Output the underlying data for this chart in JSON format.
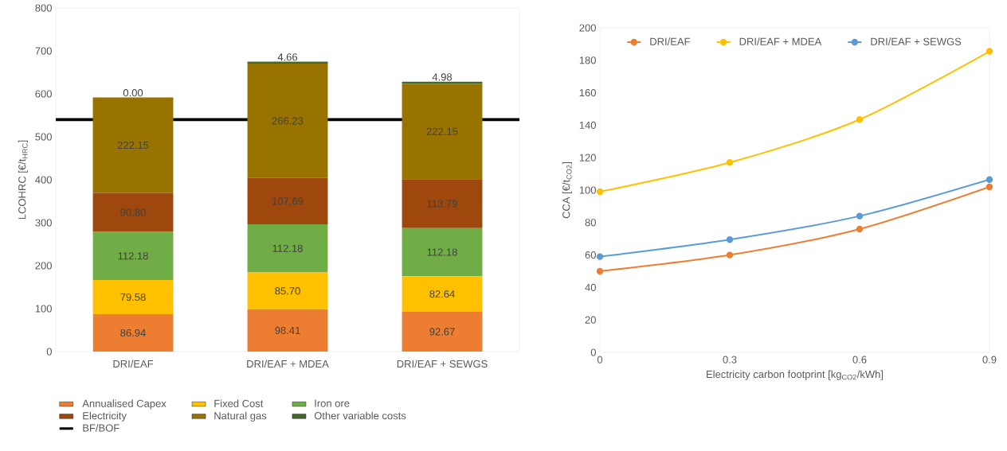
{
  "chart_data": [
    {
      "type": "bar",
      "stacked": true,
      "ylabel": "LCOHRC [€/t$_{HRC}$]",
      "categories": [
        "DRI/EAF",
        "DRI/EAF + MDEA",
        "DRI/EAF + SEWGS"
      ],
      "ylim": [
        0,
        800
      ],
      "yticks": [
        0,
        100,
        200,
        300,
        400,
        500,
        600,
        700,
        800
      ],
      "legend": "bottom",
      "series": [
        {
          "name": "Annualised Capex",
          "color": "#ed7d31",
          "values": [
            86.94,
            98.41,
            92.67
          ],
          "value_labels": [
            "86.94",
            "98.41",
            "92.67"
          ]
        },
        {
          "name": "Fixed Cost",
          "color": "#ffc000",
          "values": [
            79.58,
            85.7,
            82.64
          ],
          "value_labels": [
            "79.58",
            "85.70",
            "82.64"
          ]
        },
        {
          "name": "Iron ore",
          "color": "#70ad47",
          "values": [
            112.18,
            112.18,
            112.18
          ],
          "value_labels": [
            "112.18",
            "112.18",
            "112.18"
          ]
        },
        {
          "name": "Electricity",
          "color": "#9e480e",
          "values": [
            90.8,
            107.69,
            113.79
          ],
          "value_labels": [
            "90.80",
            "107.69",
            "113.79"
          ]
        },
        {
          "name": "Natural gas",
          "color": "#997300",
          "values": [
            222.15,
            266.23,
            222.15
          ],
          "value_labels": [
            "222.15",
            "266.23",
            "222.15"
          ]
        },
        {
          "name": "Other variable costs",
          "color": "#43682b",
          "values": [
            0.0,
            4.66,
            4.98
          ],
          "value_labels": [
            "0.00",
            "4.66",
            "4.98"
          ]
        }
      ],
      "ref_lines": [
        {
          "axis": "y",
          "value": 540,
          "label": "BF/BOF",
          "color": "#000000"
        }
      ]
    },
    {
      "type": "line",
      "xlabel": "Electricity carbon footprint [kg$_{CO2}$/kWh]",
      "ylabel": "CCA [€/t$_{CO2}$]",
      "x": [
        0,
        0.3,
        0.6,
        0.9
      ],
      "xlim": [
        0,
        0.9
      ],
      "xticks": [
        0,
        0.3,
        0.6,
        0.9
      ],
      "ylim": [
        0,
        200
      ],
      "yticks": [
        0,
        20,
        40,
        60,
        80,
        100,
        120,
        140,
        160,
        180,
        200
      ],
      "legend": "top",
      "marker": "circle",
      "line_style": "solid",
      "series": [
        {
          "name": "DRI/EAF",
          "color": "#ed7d31",
          "values": [
            50,
            60,
            76,
            102
          ]
        },
        {
          "name": "DRI/EAF + MDEA",
          "color": "#ffc000",
          "values": [
            99,
            117,
            143.5,
            185.5
          ]
        },
        {
          "name": "DRI/EAF + SEWGS",
          "color": "#5b9bd5",
          "values": [
            59,
            69.5,
            84,
            106.5
          ]
        }
      ]
    }
  ]
}
